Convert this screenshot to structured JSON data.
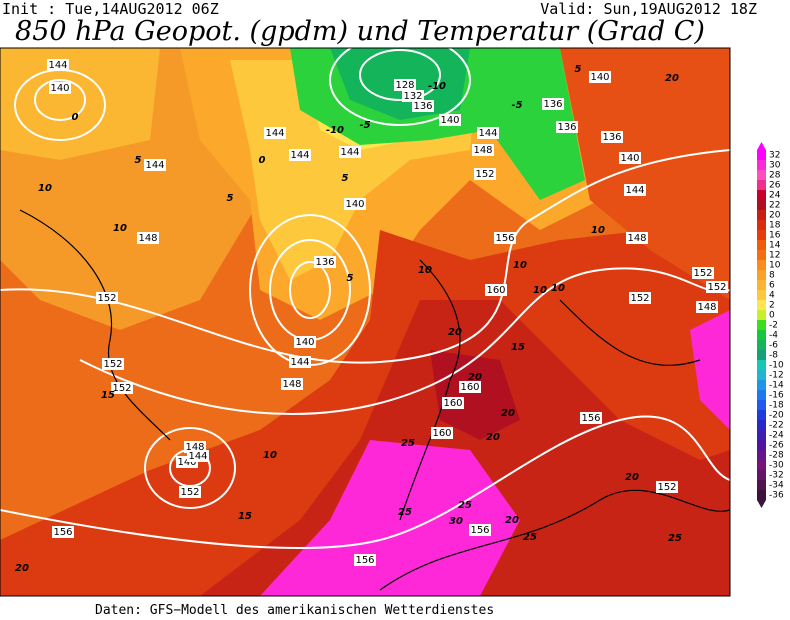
{
  "header": {
    "init": "Init : Tue,14AUG2012 06Z",
    "valid": "Valid: Sun,19AUG2012 18Z",
    "title": "850 hPa Geopot. (gpdm) und Temperatur (Grad C)"
  },
  "map": {
    "contour_labels": [
      144,
      140,
      0,
      5,
      144,
      10,
      10,
      148,
      152,
      152,
      152,
      15,
      148,
      140,
      144,
      152,
      10,
      15,
      156,
      20,
      156,
      144,
      144,
      144,
      5,
      140,
      136,
      5,
      140,
      144,
      148,
      128,
      132,
      136,
      140,
      144,
      148,
      152,
      10,
      156,
      10,
      160,
      10,
      10,
      20,
      15,
      160,
      160,
      20,
      20,
      160,
      20,
      25,
      25,
      25,
      30,
      156,
      20,
      25,
      156,
      20,
      152,
      25,
      140,
      136,
      136,
      136,
      140,
      144,
      10,
      148,
      152,
      152,
      152,
      148,
      20,
      5,
      -5,
      -10,
      -5,
      -10,
      0,
      5
    ]
  },
  "colorbar": {
    "ticks": [
      32,
      30,
      28,
      26,
      24,
      22,
      20,
      18,
      16,
      14,
      12,
      10,
      8,
      6,
      4,
      2,
      0,
      -2,
      -4,
      -6,
      -8,
      -10,
      -12,
      -14,
      -16,
      -18,
      -20,
      -22,
      -24,
      -26,
      -28,
      -30,
      -32,
      -34,
      -36
    ],
    "colors": [
      "#ff00ff",
      "#ff28d8",
      "#ff50c0",
      "#f03090",
      "#c80028",
      "#b01020",
      "#c81e14",
      "#dc2d0a",
      "#e63c0a",
      "#f05a0a",
      "#f56e14",
      "#fa8c1e",
      "#fca028",
      "#fdb432",
      "#fec83c",
      "#ffe650",
      "#c8f028",
      "#3cdc1e",
      "#14c83c",
      "#14b45a",
      "#14a078",
      "#14c8b4",
      "#1eb4d2",
      "#1e96e6",
      "#1e78f0",
      "#1e5af0",
      "#1e3cdc",
      "#2828c8",
      "#3c1eb4",
      "#5014a0",
      "#64148c",
      "#781478",
      "#641464",
      "#501450",
      "#3c143c"
    ]
  },
  "footer": "Daten: GFS−Modell des amerikanischen Wetterdienstes"
}
